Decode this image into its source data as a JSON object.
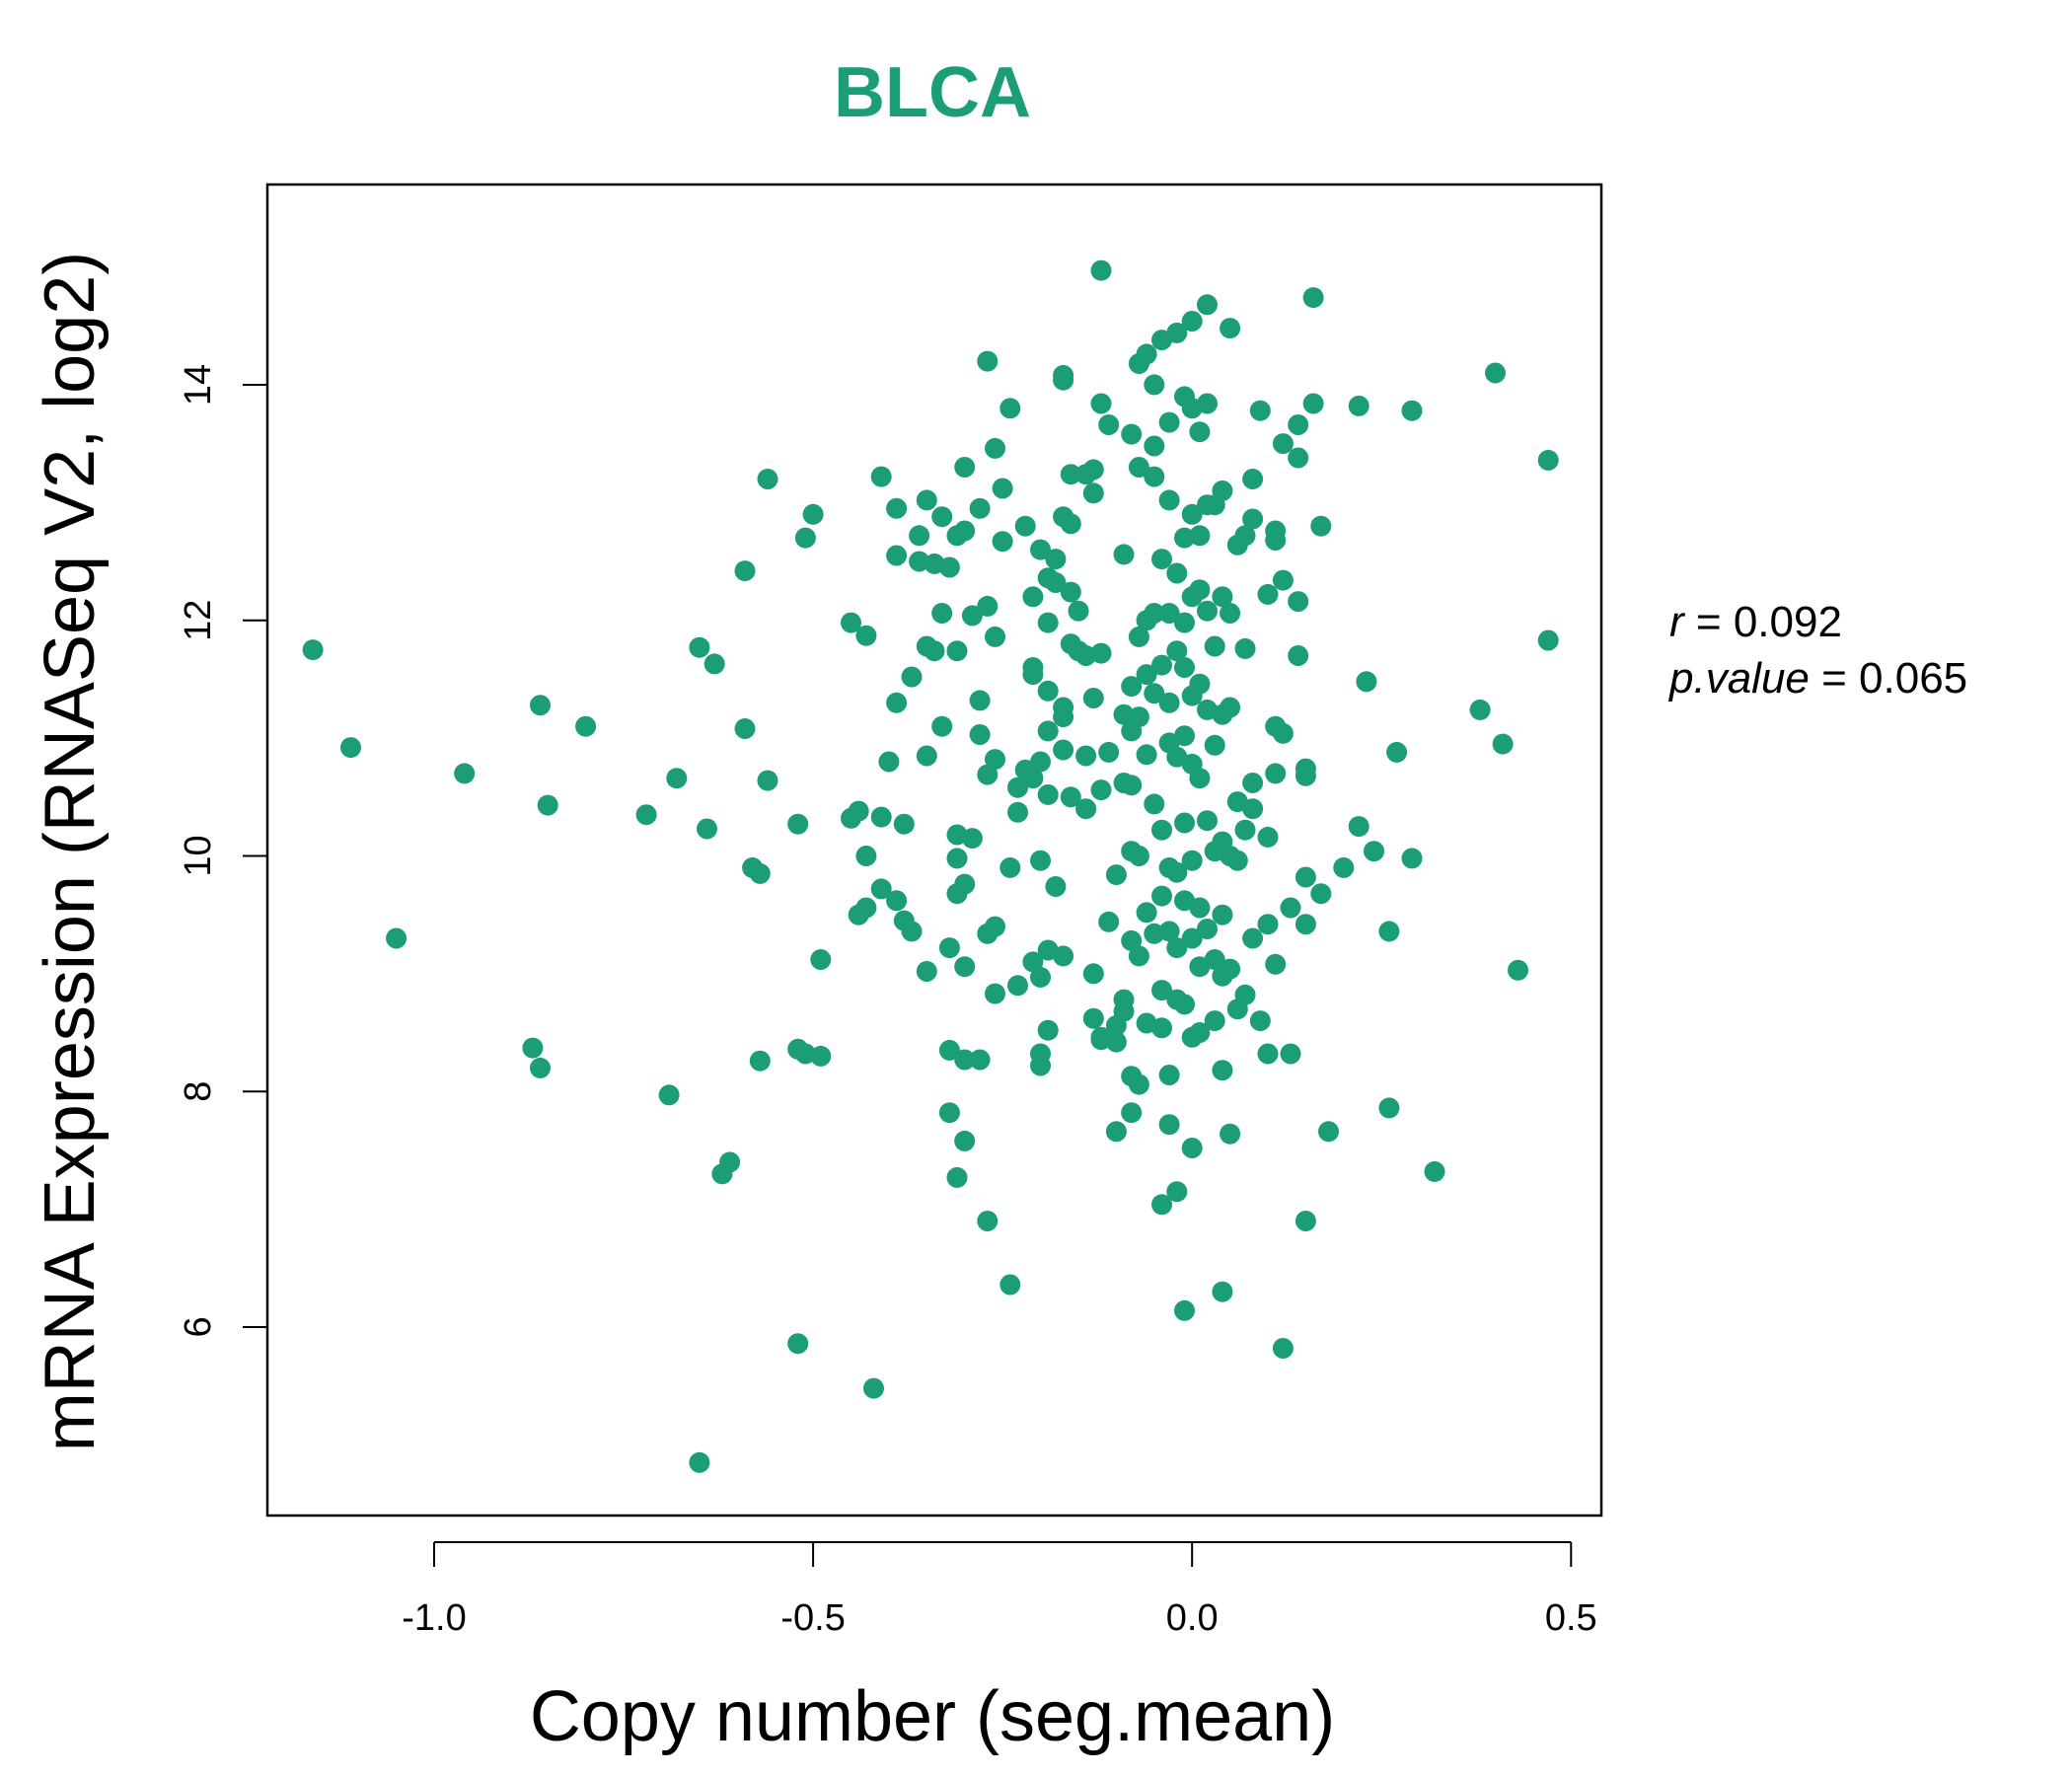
{
  "chart_data": {
    "type": "scatter",
    "title": "BLCA",
    "xlabel": "Copy number (seg.mean)",
    "ylabel": "mRNA Expression (RNASeq V2, log2)",
    "xlim": [
      -1.22,
      0.54
    ],
    "ylim": [
      4.4,
      15.7
    ],
    "x_ticks": [
      -1.0,
      -0.5,
      0.0,
      0.5
    ],
    "x_tick_labels": [
      "-1.0",
      "-0.5",
      "0.0",
      "0.5"
    ],
    "y_ticks": [
      6,
      8,
      10,
      12,
      14
    ],
    "y_tick_labels": [
      "6",
      "8",
      "10",
      "12",
      "14"
    ],
    "point_color": "#1b9e77",
    "grid": false,
    "stats": {
      "r_label": "r",
      "r_value": "0.092",
      "p_label": "p.value",
      "p_value": "0.065"
    },
    "points": [
      [
        -1.16,
        11.75
      ],
      [
        -1.11,
        10.92
      ],
      [
        -1.05,
        9.3
      ],
      [
        -0.96,
        10.7
      ],
      [
        -0.87,
        8.37
      ],
      [
        -0.86,
        8.2
      ],
      [
        -0.86,
        11.28
      ],
      [
        -0.85,
        10.43
      ],
      [
        -0.8,
        11.1
      ],
      [
        -0.72,
        10.35
      ],
      [
        -0.69,
        7.97
      ],
      [
        -0.68,
        10.66
      ],
      [
        -0.65,
        11.77
      ],
      [
        -0.65,
        4.85
      ],
      [
        -0.64,
        10.23
      ],
      [
        -0.63,
        11.63
      ],
      [
        -0.62,
        7.3
      ],
      [
        -0.61,
        7.4
      ],
      [
        -0.59,
        12.42
      ],
      [
        -0.59,
        11.08
      ],
      [
        -0.58,
        9.9
      ],
      [
        -0.57,
        9.85
      ],
      [
        -0.57,
        8.26
      ],
      [
        -0.56,
        13.2
      ],
      [
        -0.56,
        10.64
      ],
      [
        -0.52,
        8.36
      ],
      [
        -0.52,
        10.27
      ],
      [
        -0.52,
        5.86
      ],
      [
        -0.51,
        12.7
      ],
      [
        -0.51,
        8.32
      ],
      [
        -0.5,
        12.9
      ],
      [
        -0.49,
        8.3
      ],
      [
        -0.49,
        9.12
      ],
      [
        -0.45,
        11.98
      ],
      [
        -0.45,
        10.32
      ],
      [
        -0.44,
        9.5
      ],
      [
        -0.44,
        10.38
      ],
      [
        -0.43,
        11.87
      ],
      [
        -0.43,
        10.0
      ],
      [
        -0.43,
        9.56
      ],
      [
        -0.42,
        5.48
      ],
      [
        -0.41,
        13.22
      ],
      [
        -0.41,
        9.72
      ],
      [
        -0.41,
        10.33
      ],
      [
        -0.4,
        10.8
      ],
      [
        -0.39,
        12.95
      ],
      [
        -0.39,
        12.55
      ],
      [
        -0.39,
        9.62
      ],
      [
        -0.39,
        11.3
      ],
      [
        -0.38,
        10.27
      ],
      [
        -0.38,
        9.45
      ],
      [
        -0.37,
        11.52
      ],
      [
        -0.37,
        9.36
      ],
      [
        -0.36,
        12.72
      ],
      [
        -0.36,
        12.5
      ],
      [
        -0.35,
        13.02
      ],
      [
        -0.35,
        11.78
      ],
      [
        -0.35,
        9.02
      ],
      [
        -0.35,
        10.85
      ],
      [
        -0.34,
        12.48
      ],
      [
        -0.34,
        11.74
      ],
      [
        -0.33,
        11.1
      ],
      [
        -0.33,
        12.88
      ],
      [
        -0.33,
        12.06
      ],
      [
        -0.32,
        12.45
      ],
      [
        -0.32,
        9.22
      ],
      [
        -0.32,
        8.35
      ],
      [
        -0.32,
        7.82
      ],
      [
        -0.31,
        12.72
      ],
      [
        -0.31,
        11.74
      ],
      [
        -0.31,
        10.18
      ],
      [
        -0.31,
        9.98
      ],
      [
        -0.31,
        9.68
      ],
      [
        -0.31,
        7.27
      ],
      [
        -0.3,
        13.3
      ],
      [
        -0.3,
        12.76
      ],
      [
        -0.3,
        9.76
      ],
      [
        -0.3,
        9.06
      ],
      [
        -0.3,
        8.27
      ],
      [
        -0.3,
        7.58
      ],
      [
        -0.29,
        12.04
      ],
      [
        -0.29,
        10.15
      ],
      [
        -0.28,
        11.03
      ],
      [
        -0.28,
        11.32
      ],
      [
        -0.28,
        12.95
      ],
      [
        -0.28,
        8.27
      ],
      [
        -0.27,
        12.12
      ],
      [
        -0.27,
        14.2
      ],
      [
        -0.27,
        10.69
      ],
      [
        -0.27,
        9.34
      ],
      [
        -0.27,
        6.9
      ],
      [
        -0.26,
        13.46
      ],
      [
        -0.26,
        11.86
      ],
      [
        -0.26,
        10.82
      ],
      [
        -0.26,
        8.83
      ],
      [
        -0.26,
        9.4
      ],
      [
        -0.25,
        12.67
      ],
      [
        -0.25,
        13.12
      ],
      [
        -0.24,
        9.9
      ],
      [
        -0.24,
        6.36
      ],
      [
        -0.24,
        13.8
      ],
      [
        -0.23,
        10.58
      ],
      [
        -0.23,
        10.37
      ],
      [
        -0.23,
        8.9
      ],
      [
        -0.22,
        12.8
      ],
      [
        -0.22,
        10.73
      ],
      [
        -0.21,
        12.2
      ],
      [
        -0.21,
        11.6
      ],
      [
        -0.21,
        11.54
      ],
      [
        -0.21,
        10.66
      ],
      [
        -0.21,
        9.1
      ],
      [
        -0.2,
        8.97
      ],
      [
        -0.2,
        12.6
      ],
      [
        -0.2,
        10.8
      ],
      [
        -0.2,
        9.96
      ],
      [
        -0.2,
        8.32
      ],
      [
        -0.2,
        8.22
      ],
      [
        -0.19,
        12.36
      ],
      [
        -0.19,
        11.98
      ],
      [
        -0.19,
        11.06
      ],
      [
        -0.19,
        11.4
      ],
      [
        -0.19,
        10.52
      ],
      [
        -0.19,
        9.2
      ],
      [
        -0.19,
        8.52
      ],
      [
        -0.18,
        12.52
      ],
      [
        -0.18,
        12.32
      ],
      [
        -0.18,
        9.74
      ],
      [
        -0.17,
        14.04
      ],
      [
        -0.17,
        14.08
      ],
      [
        -0.17,
        12.88
      ],
      [
        -0.17,
        11.26
      ],
      [
        -0.17,
        10.9
      ],
      [
        -0.17,
        11.18
      ],
      [
        -0.17,
        9.15
      ],
      [
        -0.16,
        13.24
      ],
      [
        -0.16,
        12.82
      ],
      [
        -0.16,
        12.24
      ],
      [
        -0.16,
        11.8
      ],
      [
        -0.16,
        10.5
      ],
      [
        -0.15,
        12.08
      ],
      [
        -0.15,
        11.74
      ],
      [
        -0.14,
        11.7
      ],
      [
        -0.14,
        13.24
      ],
      [
        -0.14,
        10.4
      ],
      [
        -0.14,
        10.85
      ],
      [
        -0.13,
        13.28
      ],
      [
        -0.13,
        13.08
      ],
      [
        -0.13,
        11.34
      ],
      [
        -0.13,
        9.0
      ],
      [
        -0.13,
        8.62
      ],
      [
        -0.12,
        14.97
      ],
      [
        -0.12,
        13.84
      ],
      [
        -0.12,
        11.72
      ],
      [
        -0.12,
        10.56
      ],
      [
        -0.12,
        8.46
      ],
      [
        -0.12,
        8.44
      ],
      [
        -0.11,
        13.66
      ],
      [
        -0.11,
        10.88
      ],
      [
        -0.11,
        9.44
      ],
      [
        -0.1,
        9.84
      ],
      [
        -0.1,
        7.66
      ],
      [
        -0.1,
        8.56
      ],
      [
        -0.1,
        8.42
      ],
      [
        -0.09,
        12.56
      ],
      [
        -0.09,
        11.2
      ],
      [
        -0.09,
        10.62
      ],
      [
        -0.09,
        8.78
      ],
      [
        -0.09,
        8.68
      ],
      [
        -0.08,
        13.58
      ],
      [
        -0.08,
        11.44
      ],
      [
        -0.08,
        11.06
      ],
      [
        -0.08,
        10.6
      ],
      [
        -0.08,
        10.04
      ],
      [
        -0.08,
        9.28
      ],
      [
        -0.08,
        8.13
      ],
      [
        -0.08,
        7.82
      ],
      [
        -0.07,
        14.18
      ],
      [
        -0.07,
        13.3
      ],
      [
        -0.07,
        11.86
      ],
      [
        -0.07,
        11.18
      ],
      [
        -0.07,
        10.0
      ],
      [
        -0.07,
        9.15
      ],
      [
        -0.07,
        8.06
      ],
      [
        -0.06,
        14.26
      ],
      [
        -0.06,
        12.0
      ],
      [
        -0.06,
        11.54
      ],
      [
        -0.06,
        10.86
      ],
      [
        -0.06,
        9.52
      ],
      [
        -0.06,
        8.58
      ],
      [
        -0.05,
        14.0
      ],
      [
        -0.05,
        13.48
      ],
      [
        -0.05,
        13.22
      ],
      [
        -0.05,
        12.06
      ],
      [
        -0.05,
        11.38
      ],
      [
        -0.05,
        10.44
      ],
      [
        -0.05,
        9.34
      ],
      [
        -0.04,
        14.38
      ],
      [
        -0.04,
        12.52
      ],
      [
        -0.04,
        11.62
      ],
      [
        -0.04,
        10.22
      ],
      [
        -0.04,
        9.66
      ],
      [
        -0.04,
        8.86
      ],
      [
        -0.04,
        8.54
      ],
      [
        -0.04,
        7.04
      ],
      [
        -0.03,
        13.68
      ],
      [
        -0.03,
        13.02
      ],
      [
        -0.03,
        12.06
      ],
      [
        -0.03,
        11.3
      ],
      [
        -0.03,
        10.96
      ],
      [
        -0.03,
        9.9
      ],
      [
        -0.03,
        9.36
      ],
      [
        -0.03,
        8.14
      ],
      [
        -0.03,
        7.72
      ],
      [
        -0.02,
        14.44
      ],
      [
        -0.02,
        12.4
      ],
      [
        -0.02,
        11.74
      ],
      [
        -0.02,
        10.84
      ],
      [
        -0.02,
        9.86
      ],
      [
        -0.02,
        9.22
      ],
      [
        -0.02,
        8.78
      ],
      [
        -0.02,
        7.15
      ],
      [
        -0.01,
        13.9
      ],
      [
        -0.01,
        12.7
      ],
      [
        -0.01,
        11.98
      ],
      [
        -0.01,
        11.6
      ],
      [
        -0.01,
        11.02
      ],
      [
        -0.01,
        10.28
      ],
      [
        -0.01,
        9.62
      ],
      [
        -0.01,
        8.74
      ],
      [
        -0.01,
        6.14
      ],
      [
        0.0,
        14.54
      ],
      [
        0.0,
        13.8
      ],
      [
        0.0,
        12.9
      ],
      [
        0.0,
        12.2
      ],
      [
        0.0,
        11.36
      ],
      [
        0.0,
        10.78
      ],
      [
        0.0,
        9.96
      ],
      [
        0.0,
        9.3
      ],
      [
        0.0,
        8.46
      ],
      [
        0.0,
        7.52
      ],
      [
        0.01,
        13.6
      ],
      [
        0.01,
        12.72
      ],
      [
        0.01,
        12.26
      ],
      [
        0.01,
        11.46
      ],
      [
        0.01,
        10.66
      ],
      [
        0.01,
        9.56
      ],
      [
        0.01,
        9.06
      ],
      [
        0.01,
        8.5
      ],
      [
        0.02,
        14.68
      ],
      [
        0.02,
        13.84
      ],
      [
        0.02,
        12.98
      ],
      [
        0.02,
        12.08
      ],
      [
        0.02,
        11.24
      ],
      [
        0.02,
        10.3
      ],
      [
        0.02,
        9.38
      ],
      [
        0.03,
        12.98
      ],
      [
        0.03,
        11.78
      ],
      [
        0.03,
        10.94
      ],
      [
        0.03,
        10.04
      ],
      [
        0.03,
        9.12
      ],
      [
        0.03,
        8.6
      ],
      [
        0.04,
        13.1
      ],
      [
        0.04,
        12.2
      ],
      [
        0.04,
        11.2
      ],
      [
        0.04,
        10.12
      ],
      [
        0.04,
        9.5
      ],
      [
        0.04,
        8.98
      ],
      [
        0.04,
        8.18
      ],
      [
        0.04,
        6.3
      ],
      [
        0.05,
        14.48
      ],
      [
        0.05,
        12.06
      ],
      [
        0.05,
        11.26
      ],
      [
        0.05,
        10.0
      ],
      [
        0.05,
        9.04
      ],
      [
        0.05,
        7.64
      ],
      [
        0.06,
        12.64
      ],
      [
        0.06,
        10.46
      ],
      [
        0.06,
        9.96
      ],
      [
        0.06,
        8.7
      ],
      [
        0.07,
        12.72
      ],
      [
        0.07,
        11.76
      ],
      [
        0.07,
        10.22
      ],
      [
        0.07,
        8.82
      ],
      [
        0.08,
        13.2
      ],
      [
        0.08,
        12.86
      ],
      [
        0.08,
        10.62
      ],
      [
        0.08,
        9.3
      ],
      [
        0.08,
        10.4
      ],
      [
        0.09,
        13.78
      ],
      [
        0.09,
        8.6
      ],
      [
        0.1,
        12.22
      ],
      [
        0.1,
        9.42
      ],
      [
        0.1,
        8.32
      ],
      [
        0.1,
        10.16
      ],
      [
        0.11,
        12.76
      ],
      [
        0.11,
        12.68
      ],
      [
        0.11,
        11.1
      ],
      [
        0.11,
        10.7
      ],
      [
        0.11,
        9.08
      ],
      [
        0.12,
        12.34
      ],
      [
        0.12,
        11.04
      ],
      [
        0.12,
        5.82
      ],
      [
        0.12,
        13.5
      ],
      [
        0.13,
        9.56
      ],
      [
        0.13,
        8.32
      ],
      [
        0.14,
        13.38
      ],
      [
        0.14,
        13.66
      ],
      [
        0.14,
        12.16
      ],
      [
        0.14,
        11.7
      ],
      [
        0.15,
        10.74
      ],
      [
        0.15,
        9.82
      ],
      [
        0.15,
        9.42
      ],
      [
        0.15,
        6.9
      ],
      [
        0.15,
        10.68
      ],
      [
        0.16,
        13.84
      ],
      [
        0.16,
        14.74
      ],
      [
        0.17,
        12.8
      ],
      [
        0.17,
        9.68
      ],
      [
        0.18,
        7.66
      ],
      [
        0.2,
        9.9
      ],
      [
        0.22,
        13.82
      ],
      [
        0.22,
        10.25
      ],
      [
        0.23,
        11.48
      ],
      [
        0.24,
        10.04
      ],
      [
        0.26,
        9.36
      ],
      [
        0.26,
        7.86
      ],
      [
        0.27,
        10.88
      ],
      [
        0.29,
        13.78
      ],
      [
        0.29,
        9.98
      ],
      [
        0.32,
        7.32
      ],
      [
        0.38,
        11.24
      ],
      [
        0.4,
        14.1
      ],
      [
        0.41,
        10.95
      ],
      [
        0.43,
        9.03
      ],
      [
        0.47,
        13.36
      ],
      [
        0.47,
        11.83
      ]
    ]
  }
}
